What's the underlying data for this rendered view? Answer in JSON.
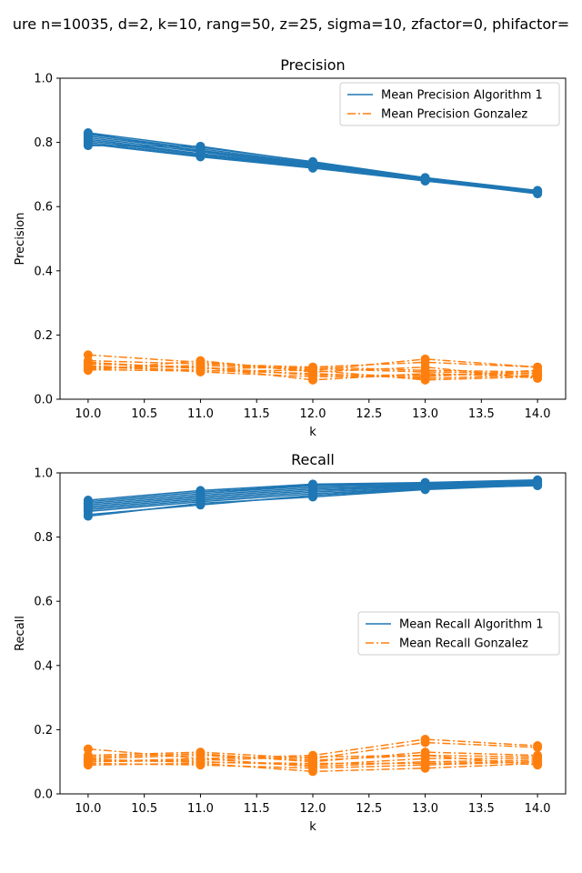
{
  "figure": {
    "suptitle": "ure   n=10035, d=2, k=10, rang=50, z=25, sigma=10, zfactor=0, phifactor="
  },
  "colors": {
    "alg1": "#1f77b4",
    "gonzalez": "#ff7f0e"
  },
  "chart_data": [
    {
      "type": "line",
      "title": "Precision",
      "xlabel": "k",
      "ylabel": "Precision",
      "xlim": [
        9.75,
        14.25
      ],
      "ylim": [
        0,
        1
      ],
      "xticks": [
        "10.0",
        "10.5",
        "11.0",
        "11.5",
        "12.0",
        "12.5",
        "13.0",
        "13.5",
        "14.0"
      ],
      "yticks": [
        "0.0",
        "0.2",
        "0.4",
        "0.6",
        "0.8",
        "1.0"
      ],
      "legend_position": "upper-right",
      "legend": [
        {
          "label": "Mean Precision Algorithm 1",
          "style": "solid",
          "color": "#1f77b4"
        },
        {
          "label": "Mean Precision Gonzalez",
          "style": "dashdot",
          "color": "#ff7f0e"
        }
      ],
      "x": [
        10,
        11,
        12,
        13,
        14
      ],
      "series": [
        {
          "group": "alg1",
          "values": [
            0.83,
            0.785,
            0.74,
            0.69,
            0.65
          ]
        },
        {
          "group": "alg1",
          "values": [
            0.825,
            0.78,
            0.735,
            0.688,
            0.648
          ]
        },
        {
          "group": "alg1",
          "values": [
            0.82,
            0.775,
            0.732,
            0.685,
            0.645
          ]
        },
        {
          "group": "alg1",
          "values": [
            0.815,
            0.77,
            0.73,
            0.683,
            0.643
          ]
        },
        {
          "group": "alg1",
          "values": [
            0.81,
            0.765,
            0.728,
            0.68,
            0.642
          ]
        },
        {
          "group": "alg1",
          "values": [
            0.805,
            0.762,
            0.725,
            0.682,
            0.64
          ]
        },
        {
          "group": "alg1",
          "values": [
            0.8,
            0.758,
            0.722,
            0.685,
            0.645
          ]
        },
        {
          "group": "alg1",
          "values": [
            0.79,
            0.788,
            0.738,
            0.69,
            0.648
          ]
        },
        {
          "group": "alg1",
          "values": [
            0.795,
            0.755,
            0.72,
            0.68,
            0.65
          ]
        },
        {
          "group": "alg1",
          "values": [
            0.828,
            0.772,
            0.736,
            0.687,
            0.644
          ]
        },
        {
          "group": "gonzalez",
          "values": [
            0.138,
            0.115,
            0.09,
            0.125,
            0.1
          ]
        },
        {
          "group": "gonzalez",
          "values": [
            0.12,
            0.11,
            0.1,
            0.09,
            0.085
          ]
        },
        {
          "group": "gonzalez",
          "values": [
            0.11,
            0.1,
            0.06,
            0.08,
            0.07
          ]
        },
        {
          "group": "gonzalez",
          "values": [
            0.1,
            0.09,
            0.08,
            0.065,
            0.075
          ]
        },
        {
          "group": "gonzalez",
          "values": [
            0.095,
            0.105,
            0.095,
            0.085,
            0.08
          ]
        },
        {
          "group": "gonzalez",
          "values": [
            0.09,
            0.12,
            0.085,
            0.1,
            0.065
          ]
        },
        {
          "group": "gonzalez",
          "values": [
            0.105,
            0.085,
            0.07,
            0.07,
            0.09
          ]
        },
        {
          "group": "gonzalez",
          "values": [
            0.115,
            0.095,
            0.1,
            0.115,
            0.1
          ]
        },
        {
          "group": "gonzalez",
          "values": [
            0.1,
            0.1,
            0.075,
            0.075,
            0.08
          ]
        },
        {
          "group": "gonzalez",
          "values": [
            0.092,
            0.088,
            0.09,
            0.06,
            0.07
          ]
        }
      ]
    },
    {
      "type": "line",
      "title": "Recall",
      "xlabel": "k",
      "ylabel": "Recall",
      "xlim": [
        9.75,
        14.25
      ],
      "ylim": [
        0,
        1
      ],
      "xticks": [
        "10.0",
        "10.5",
        "11.0",
        "11.5",
        "12.0",
        "12.5",
        "13.0",
        "13.5",
        "14.0"
      ],
      "yticks": [
        "0.0",
        "0.2",
        "0.4",
        "0.6",
        "0.8",
        "1.0"
      ],
      "legend_position": "center-right",
      "legend": [
        {
          "label": "Mean Recall Algorithm 1",
          "style": "solid",
          "color": "#1f77b4"
        },
        {
          "label": "Mean Recall Gonzalez",
          "style": "dashdot",
          "color": "#ff7f0e"
        }
      ],
      "x": [
        10,
        11,
        12,
        13,
        14
      ],
      "series": [
        {
          "group": "alg1",
          "values": [
            0.915,
            0.945,
            0.965,
            0.97,
            0.978
          ]
        },
        {
          "group": "alg1",
          "values": [
            0.91,
            0.94,
            0.962,
            0.968,
            0.975
          ]
        },
        {
          "group": "alg1",
          "values": [
            0.905,
            0.935,
            0.96,
            0.965,
            0.972
          ]
        },
        {
          "group": "alg1",
          "values": [
            0.9,
            0.93,
            0.955,
            0.962,
            0.97
          ]
        },
        {
          "group": "alg1",
          "values": [
            0.895,
            0.925,
            0.95,
            0.96,
            0.968
          ]
        },
        {
          "group": "alg1",
          "values": [
            0.89,
            0.92,
            0.945,
            0.958,
            0.965
          ]
        },
        {
          "group": "alg1",
          "values": [
            0.885,
            0.915,
            0.94,
            0.955,
            0.963
          ]
        },
        {
          "group": "alg1",
          "values": [
            0.88,
            0.91,
            0.935,
            0.952,
            0.96
          ]
        },
        {
          "group": "alg1",
          "values": [
            0.87,
            0.9,
            0.93,
            0.95,
            0.965
          ]
        },
        {
          "group": "alg1",
          "values": [
            0.865,
            0.905,
            0.925,
            0.948,
            0.962
          ]
        },
        {
          "group": "gonzalez",
          "values": [
            0.14,
            0.11,
            0.12,
            0.17,
            0.15
          ]
        },
        {
          "group": "gonzalez",
          "values": [
            0.12,
            0.13,
            0.11,
            0.16,
            0.145
          ]
        },
        {
          "group": "gonzalez",
          "values": [
            0.115,
            0.125,
            0.1,
            0.13,
            0.12
          ]
        },
        {
          "group": "gonzalez",
          "values": [
            0.11,
            0.12,
            0.105,
            0.12,
            0.115
          ]
        },
        {
          "group": "gonzalez",
          "values": [
            0.105,
            0.1,
            0.09,
            0.11,
            0.11
          ]
        },
        {
          "group": "gonzalez",
          "values": [
            0.1,
            0.11,
            0.085,
            0.1,
            0.105
          ]
        },
        {
          "group": "gonzalez",
          "values": [
            0.095,
            0.09,
            0.08,
            0.09,
            0.1
          ]
        },
        {
          "group": "gonzalez",
          "values": [
            0.09,
            0.095,
            0.07,
            0.08,
            0.095
          ]
        },
        {
          "group": "gonzalez",
          "values": [
            0.1,
            0.105,
            0.115,
            0.12,
            0.09
          ]
        },
        {
          "group": "gonzalez",
          "values": [
            0.108,
            0.098,
            0.095,
            0.095,
            0.1
          ]
        }
      ]
    }
  ]
}
